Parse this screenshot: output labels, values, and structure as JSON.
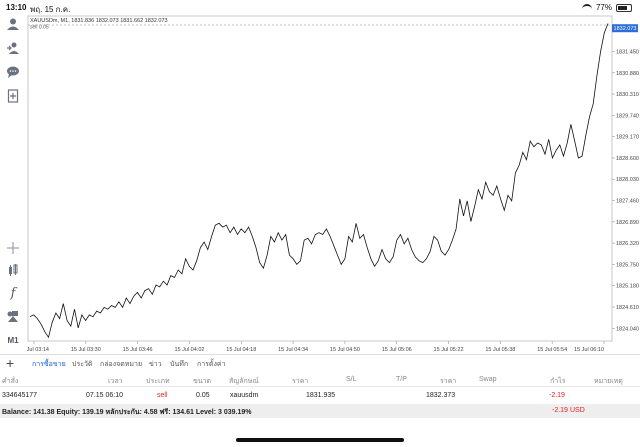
{
  "status": {
    "time": "13:10",
    "date": "พฤ. 15 ก.ค.",
    "battery": "77%"
  },
  "chart": {
    "header": "XAUUSDm, M1, 1831.836 1832.073 1831.662 1832.073",
    "sell_label": "sell 0.05",
    "current_price": "1832.073",
    "price_ticks": [
      "1831.450",
      "1830.880",
      "1830.310",
      "1829.740",
      "1829.170",
      "1828.600",
      "1828.030",
      "1827.460",
      "1826.890",
      "1826.320",
      "1825.750",
      "1825.180",
      "1824.610",
      "1824.040"
    ],
    "time_ticks": [
      "15 Jul 03:14",
      "15 Jul 03:30",
      "15 Jul 03:46",
      "15 Jul 04:02",
      "15 Jul 04:18",
      "15 Jul 04:34",
      "15 Jul 04:50",
      "15 Jul 05:06",
      "15 Jul 05:22",
      "15 Jul 05:38",
      "15 Jul 05:54",
      "15 Jul 06:10"
    ],
    "line_color": "#111111",
    "sell_line_color": "#888888"
  },
  "chart_data": {
    "type": "line",
    "symbol": "XAUUSDm",
    "timeframe": "M1",
    "ylim": [
      1823.7,
      1832.4
    ],
    "y": [
      1824.35,
      1824.4,
      1824.3,
      1824.15,
      1823.95,
      1823.8,
      1824.2,
      1824.45,
      1824.3,
      1824.7,
      1824.25,
      1824.1,
      1824.55,
      1824.05,
      1824.4,
      1824.25,
      1824.4,
      1824.35,
      1824.5,
      1824.45,
      1824.6,
      1824.55,
      1824.65,
      1824.6,
      1824.75,
      1824.6,
      1824.85,
      1824.7,
      1824.9,
      1825.0,
      1824.85,
      1825.05,
      1825.1,
      1824.95,
      1825.2,
      1825.15,
      1825.3,
      1825.2,
      1825.45,
      1825.4,
      1825.6,
      1825.5,
      1825.9,
      1825.7,
      1825.6,
      1825.85,
      1826.2,
      1826.35,
      1826.15,
      1826.5,
      1826.8,
      1826.85,
      1826.75,
      1826.8,
      1826.6,
      1826.75,
      1826.55,
      1826.7,
      1826.6,
      1826.75,
      1826.5,
      1826.2,
      1825.8,
      1825.65,
      1826.0,
      1826.5,
      1826.35,
      1826.6,
      1826.4,
      1826.55,
      1826.0,
      1825.9,
      1825.75,
      1825.85,
      1826.4,
      1826.45,
      1826.3,
      1826.55,
      1826.6,
      1826.55,
      1826.7,
      1826.5,
      1826.25,
      1826.0,
      1825.75,
      1825.9,
      1826.5,
      1826.35,
      1826.85,
      1826.45,
      1826.55,
      1826.2,
      1825.9,
      1825.7,
      1825.85,
      1826.15,
      1825.9,
      1825.8,
      1825.95,
      1826.4,
      1826.55,
      1826.3,
      1826.45,
      1826.15,
      1825.95,
      1825.85,
      1825.8,
      1825.9,
      1826.1,
      1826.5,
      1826.4,
      1826.1,
      1826.0,
      1826.15,
      1826.4,
      1826.7,
      1827.5,
      1827.05,
      1827.45,
      1826.9,
      1827.3,
      1827.75,
      1827.5,
      1827.95,
      1827.7,
      1827.6,
      1827.85,
      1827.5,
      1827.2,
      1827.6,
      1827.45,
      1828.2,
      1828.4,
      1828.75,
      1828.55,
      1829.05,
      1828.9,
      1829.0,
      1828.95,
      1828.7,
      1829.1,
      1828.6,
      1828.8,
      1828.95,
      1828.65,
      1829.0,
      1829.5,
      1829.05,
      1828.6,
      1828.65,
      1829.2,
      1829.7,
      1830.05,
      1830.8,
      1831.45,
      1831.95,
      1832.2
    ]
  },
  "tabs": {
    "items": [
      "การซื้อขาย",
      "ประวัติ",
      "กล่องจดหมาย",
      "ข่าว",
      "บันทึก",
      "การตั้งค่า"
    ],
    "active": "การซื้อขาย"
  },
  "table": {
    "columns": [
      "คำสั่ง",
      "เวลา",
      "ประเภท",
      "ขนาด",
      "สัญลักษณ์",
      "ราคา",
      "S/L",
      "T/P",
      "ราคา",
      "Swap",
      "กำไร",
      "หมายเหตุ"
    ],
    "rows": [
      {
        "order": "334645177",
        "time": "07.15 06:10",
        "type": "sell",
        "size": "0.05",
        "symbol": "xauusdm",
        "price": "1831.935",
        "sl": "",
        "tp": "",
        "current": "1832.373",
        "swap": "",
        "profit": "-2.19",
        "comment": ""
      }
    ]
  },
  "balance": {
    "text": "Balance: 141.38 Equity: 139.19 หลักประกัน: 4.58 ฟรี: 134.61 Level: 3 039.19%",
    "profit": "-2.19",
    "currency": "USD"
  },
  "sidebar": {
    "icons": [
      "user-icon",
      "login-icon",
      "chat-icon",
      "add-document-icon",
      "crosshair-icon",
      "indicator-icon",
      "function-icon",
      "objects-icon"
    ],
    "timeframe_label": "M1"
  }
}
